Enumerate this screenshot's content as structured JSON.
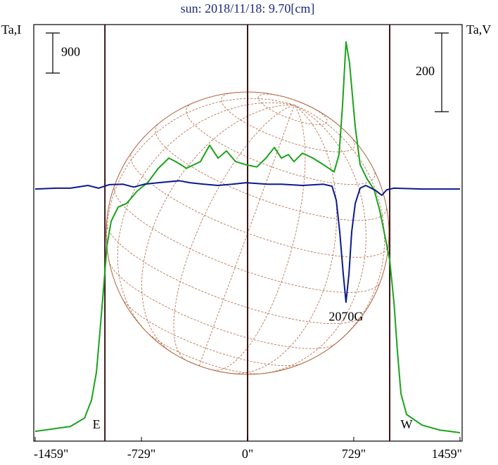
{
  "chart_data": {
    "type": "line",
    "title": "sun: 2018/11/18: 9.70[cm]",
    "ylabel": "Ta,I",
    "y2label": "Ta,V",
    "xlim": [
      -1459,
      1459
    ],
    "xticks": [
      {
        "value": -1459,
        "label": "-1459\""
      },
      {
        "value": -729,
        "label": "-729\""
      },
      {
        "value": 0,
        "label": "0\""
      },
      {
        "value": 729,
        "label": "729\""
      },
      {
        "value": 1459,
        "label": "1459\""
      }
    ],
    "ylim": [
      0,
      9360
    ],
    "y2lim": [
      -641,
      418
    ],
    "vlines": [
      {
        "x": -980,
        "label": "E"
      },
      {
        "x": 0
      },
      {
        "x": 976,
        "label": "W"
      }
    ],
    "scale_bars": [
      {
        "value": 900,
        "axis": "y"
      },
      {
        "value": 200,
        "axis": "y2"
      }
    ],
    "annotations": [
      {
        "text": "2070G",
        "x": 676,
        "y": -327,
        "axis": "y2"
      }
    ],
    "series": [
      {
        "name": "I",
        "color": "#1aa31a",
        "axis": "y",
        "x": [
          -1459,
          -1217,
          -1120,
          -1072,
          -1038,
          -1009,
          -985,
          -966,
          -937,
          -889,
          -831,
          -758,
          -686,
          -613,
          -541,
          -493,
          -420,
          -324,
          -261,
          -203,
          -145,
          -82,
          -10,
          63,
          126,
          184,
          232,
          280,
          319,
          377,
          449,
          522,
          594,
          628,
          652,
          676,
          700,
          739,
          773,
          821,
          869,
          908,
          947,
          976,
          1005,
          1029,
          1053,
          1092,
          1198,
          1319,
          1459
        ],
        "values": [
          220,
          330,
          520,
          920,
          1550,
          2650,
          3600,
          4390,
          4940,
          5260,
          5340,
          5620,
          5810,
          6130,
          6360,
          6280,
          6130,
          6280,
          6650,
          6360,
          6520,
          6280,
          6210,
          6160,
          6360,
          6600,
          6360,
          6440,
          6280,
          6470,
          6360,
          6210,
          6050,
          6440,
          7550,
          8970,
          8500,
          7070,
          6210,
          5890,
          5650,
          5180,
          4550,
          4070,
          3130,
          2020,
          1070,
          600,
          360,
          250,
          190
        ]
      },
      {
        "name": "V",
        "color": "#0a1a8c",
        "axis": "y2",
        "x": [
          -1459,
          -1314,
          -1217,
          -1096,
          -1024,
          -951,
          -855,
          -782,
          -710,
          -613,
          -468,
          -396,
          -300,
          -203,
          -106,
          -10,
          135,
          232,
          377,
          522,
          580,
          609,
          633,
          657,
          676,
          696,
          715,
          739,
          773,
          811,
          850,
          884,
          922,
          956,
          1005,
          1198,
          1459
        ],
        "values": [
          0,
          2,
          2,
          9,
          2,
          11,
          12,
          5,
          12,
          16,
          21,
          16,
          12,
          9,
          12,
          16,
          12,
          12,
          9,
          12,
          7,
          -29,
          -109,
          -216,
          -288,
          -216,
          -109,
          -37,
          2,
          9,
          2,
          -5,
          -16,
          -2,
          2,
          0,
          0
        ]
      }
    ]
  }
}
